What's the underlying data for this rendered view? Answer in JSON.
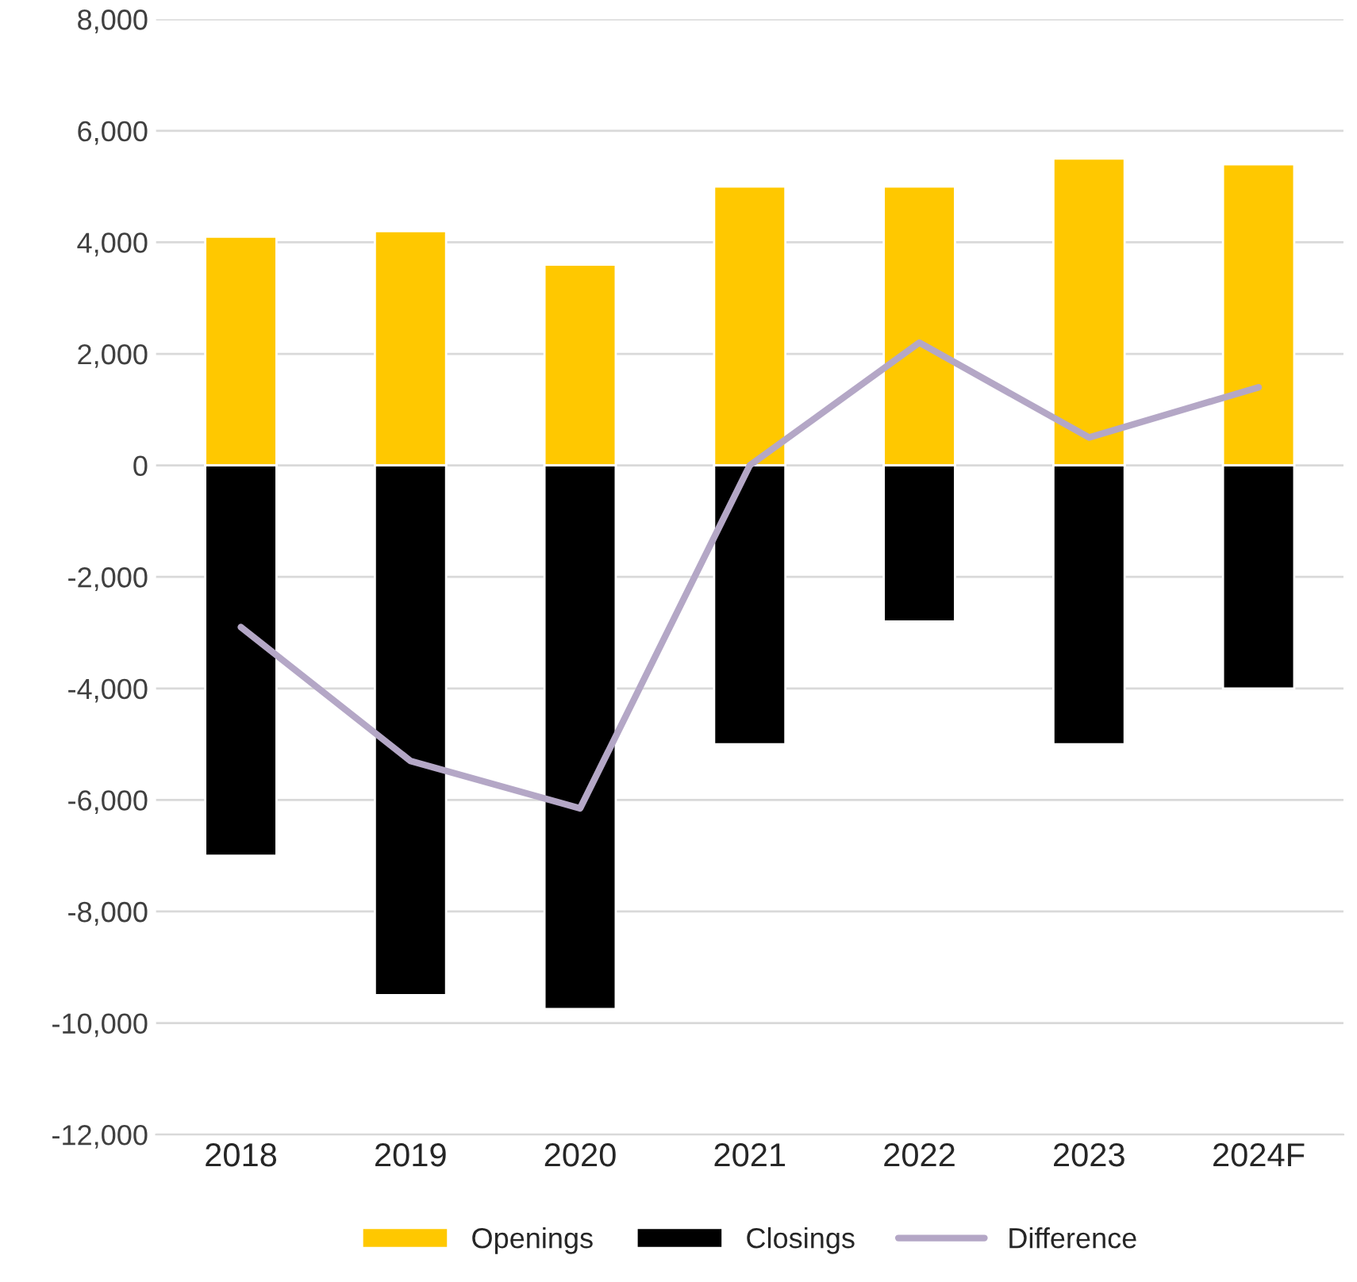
{
  "chart_data": {
    "type": "bar",
    "stacked": true,
    "categories": [
      "2018",
      "2019",
      "2020",
      "2021",
      "2022",
      "2023",
      "2024F"
    ],
    "series": [
      {
        "name": "Openings",
        "color": "#ffc800",
        "values": [
          4100,
          4200,
          3600,
          5000,
          5000,
          5500,
          5400
        ]
      },
      {
        "name": "Closings",
        "color": "#000000",
        "values": [
          -7000,
          -9500,
          -9750,
          -5000,
          -2800,
          -5000,
          -4000
        ]
      },
      {
        "name": "Difference",
        "type": "line",
        "color": "#b4a7c6",
        "values": [
          -2900,
          -5300,
          -6150,
          0,
          2200,
          500,
          1400
        ]
      }
    ],
    "ylim": [
      -12000,
      8000
    ],
    "yticks": [
      {
        "value": -12000,
        "label": "-12,000"
      },
      {
        "value": -10000,
        "label": "-10,000"
      },
      {
        "value": -8000,
        "label": "-8,000"
      },
      {
        "value": -6000,
        "label": "-6,000"
      },
      {
        "value": -4000,
        "label": "-4,000"
      },
      {
        "value": -2000,
        "label": "-2,000"
      },
      0,
      {
        "value": 2000,
        "label": "2,000"
      },
      {
        "value": 4000,
        "label": "4,000"
      },
      {
        "value": 6000,
        "label": "6,000"
      },
      {
        "value": 8000,
        "label": "8,000"
      }
    ],
    "grid": "y",
    "legend": "bottom",
    "marker": "none",
    "line_style": "solid"
  }
}
